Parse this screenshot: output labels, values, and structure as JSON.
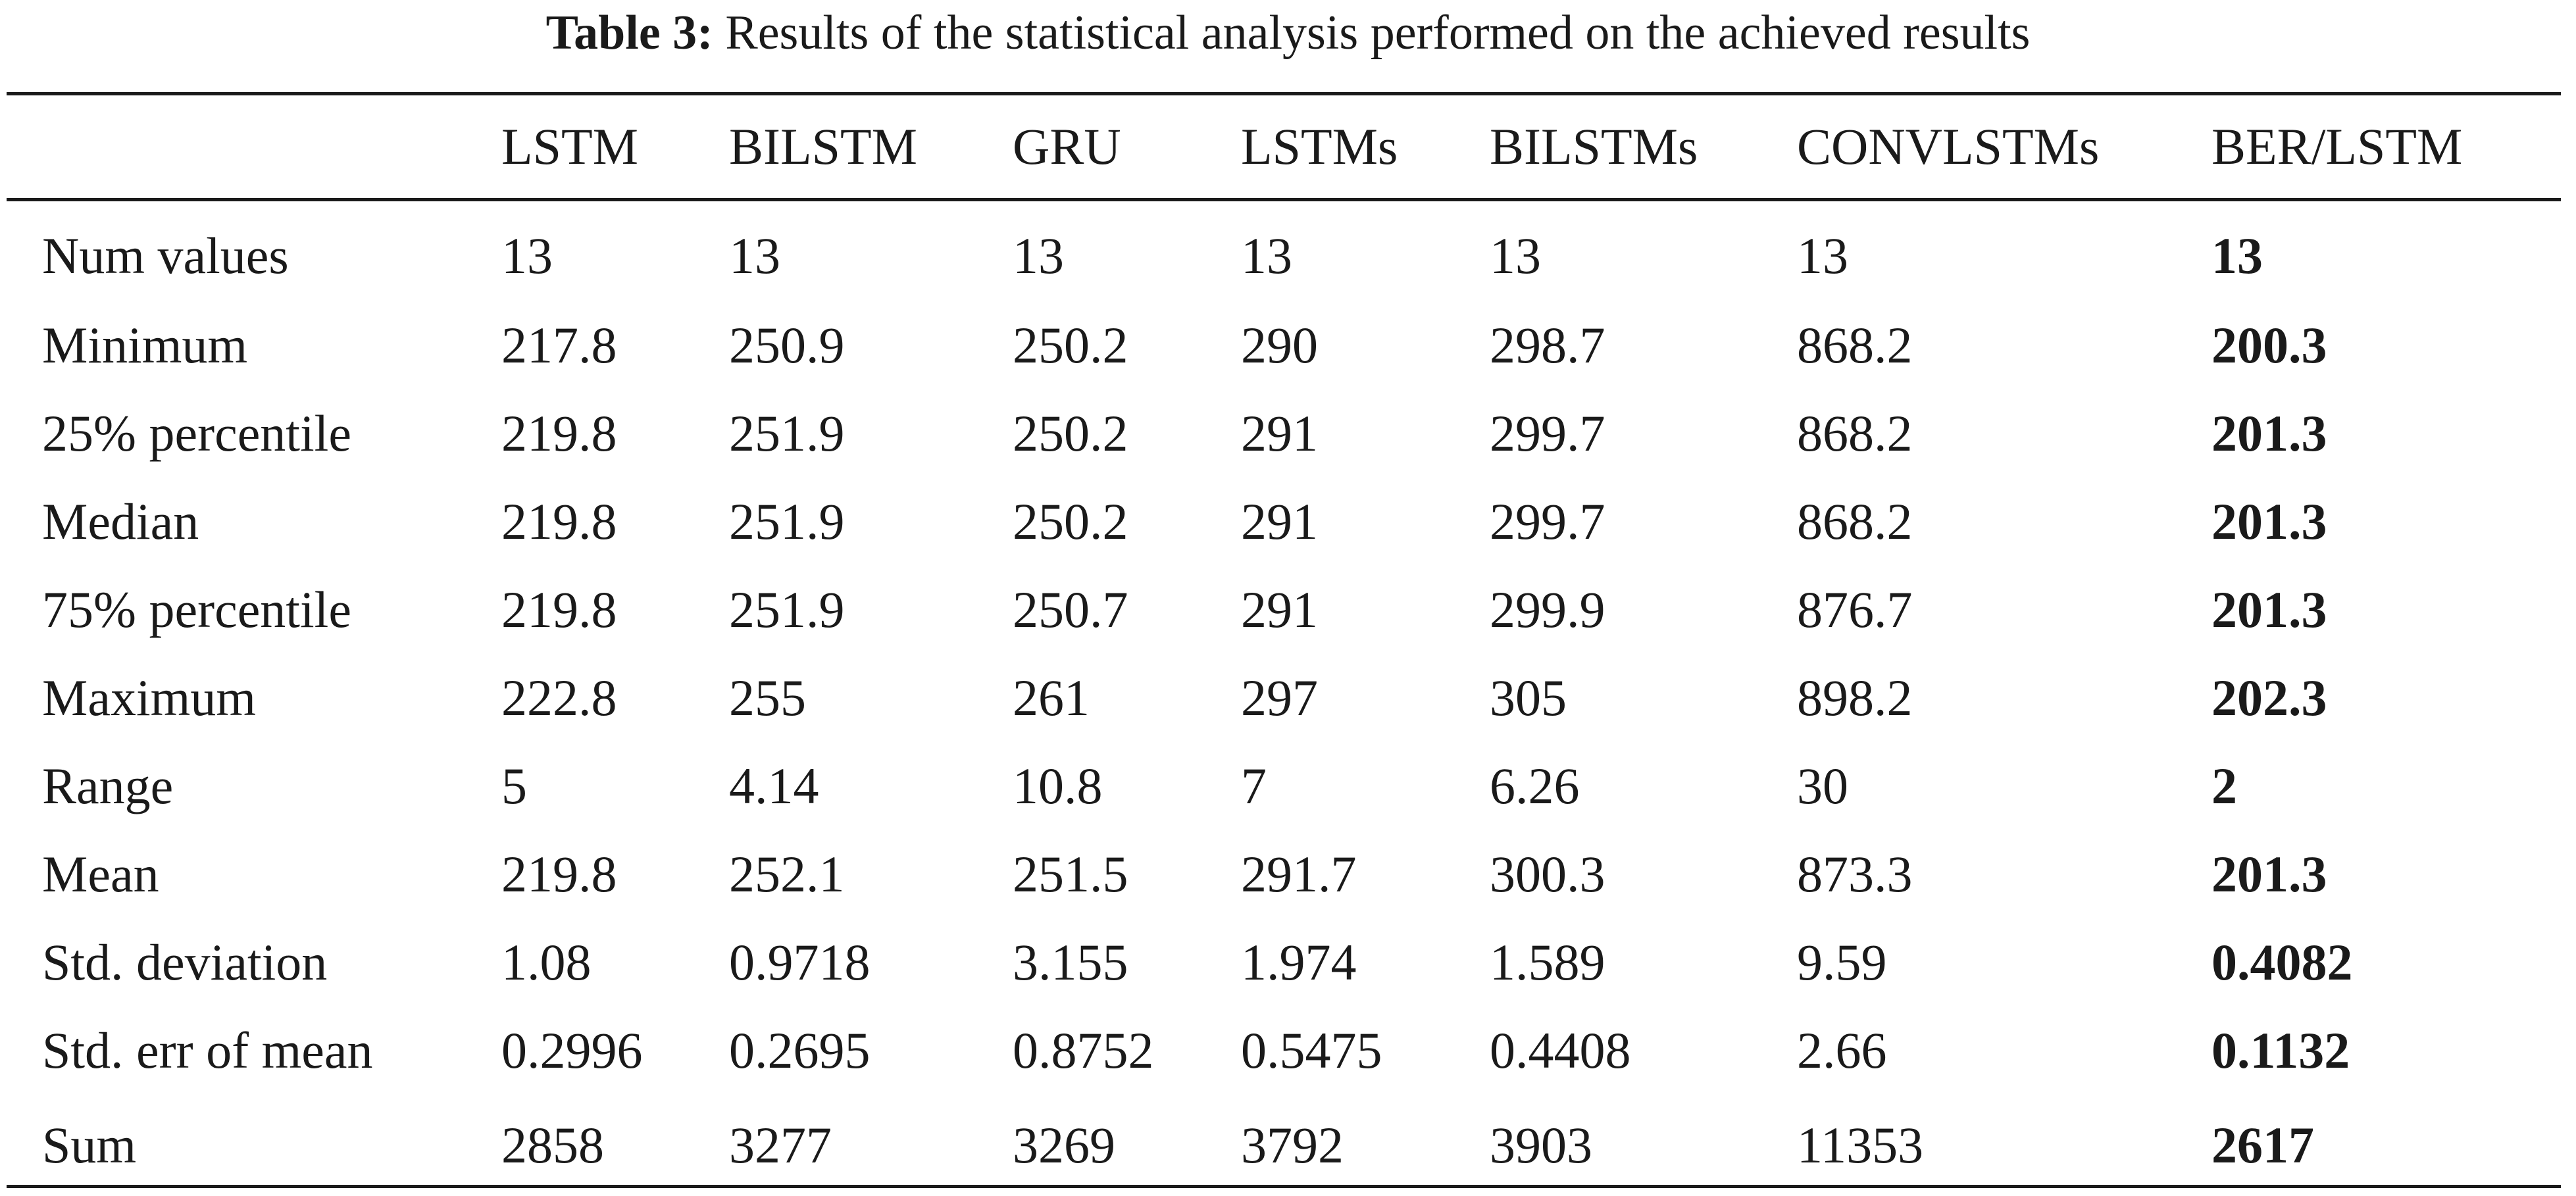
{
  "caption": {
    "label": "Table 3:",
    "text": "Results of the statistical analysis performed on the achieved results"
  },
  "columns": [
    "",
    "LSTM",
    "BILSTM",
    "GRU",
    "LSTMs",
    "BILSTMs",
    "CONVLSTMs",
    "BER/LSTM"
  ],
  "rows": [
    {
      "label": "Num values",
      "values": [
        "13",
        "13",
        "13",
        "13",
        "13",
        "13",
        "13"
      ]
    },
    {
      "label": "Minimum",
      "values": [
        "217.8",
        "250.9",
        "250.2",
        "290",
        "298.7",
        "868.2",
        "200.3"
      ]
    },
    {
      "label": "25% percentile",
      "values": [
        "219.8",
        "251.9",
        "250.2",
        "291",
        "299.7",
        "868.2",
        "201.3"
      ]
    },
    {
      "label": "Median",
      "values": [
        "219.8",
        "251.9",
        "250.2",
        "291",
        "299.7",
        "868.2",
        "201.3"
      ]
    },
    {
      "label": "75% percentile",
      "values": [
        "219.8",
        "251.9",
        "250.7",
        "291",
        "299.9",
        "876.7",
        "201.3"
      ]
    },
    {
      "label": "Maximum",
      "values": [
        "222.8",
        "255",
        "261",
        "297",
        "305",
        "898.2",
        "202.3"
      ]
    },
    {
      "label": "Range",
      "values": [
        "5",
        "4.14",
        "10.8",
        "7",
        "6.26",
        "30",
        "2"
      ]
    },
    {
      "label": "Mean",
      "values": [
        "219.8",
        "252.1",
        "251.5",
        "291.7",
        "300.3",
        "873.3",
        "201.3"
      ]
    },
    {
      "label": "Std. deviation",
      "values": [
        "1.08",
        "0.9718",
        "3.155",
        "1.974",
        "1.589",
        "9.59",
        "0.4082"
      ]
    },
    {
      "label": "Std. err of mean",
      "values": [
        "0.2996",
        "0.2695",
        "0.8752",
        "0.5475",
        "0.4408",
        "2.66",
        "0.1132"
      ]
    },
    {
      "label": "Sum",
      "values": [
        "2858",
        "3277",
        "3269",
        "3792",
        "3903",
        "11353",
        "2617"
      ]
    }
  ]
}
